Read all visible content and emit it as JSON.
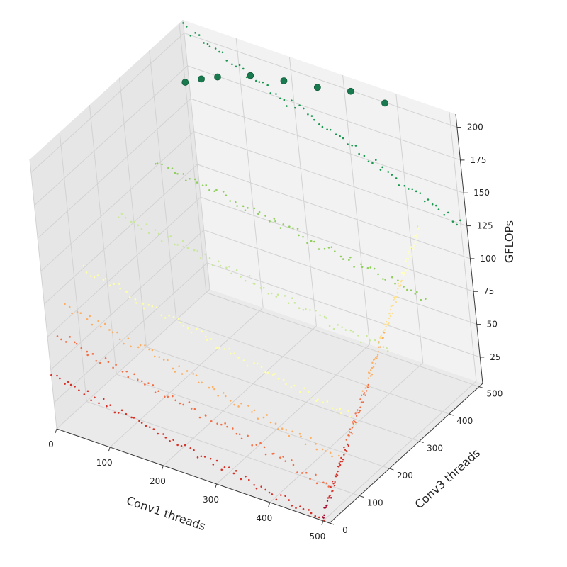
{
  "chart_data": {
    "type": "scatter",
    "projection": "3d",
    "title": "",
    "xlabel": "Conv1 threads",
    "ylabel": "Conv3 threads",
    "zlabel": "GFLOPs",
    "xlim": [
      0,
      512
    ],
    "ylim": [
      0,
      512
    ],
    "zlim": [
      5,
      210
    ],
    "x_ticks": [
      0,
      100,
      200,
      300,
      400,
      500
    ],
    "y_ticks": [
      0,
      100,
      200,
      300,
      400,
      500
    ],
    "z_ticks": [
      25,
      50,
      75,
      100,
      125,
      150,
      175,
      200
    ],
    "grid": true,
    "legend": "none",
    "colormap": "RdYlGn",
    "color_stops": [
      "#a50026",
      "#d73027",
      "#f46d43",
      "#fdae61",
      "#fee08b",
      "#ffffbf",
      "#d9ef8b",
      "#a6d96a",
      "#66bd63",
      "#1a9850",
      "#006837"
    ],
    "series": [
      {
        "name": "",
        "conv3_threads": 0,
        "gflops_range": [
          5,
          45
        ],
        "color": "#d73027"
      },
      {
        "name": "",
        "conv3_threads": 32,
        "gflops_range": [
          25,
          70
        ],
        "color": "#f46d43"
      },
      {
        "name": "",
        "conv3_threads": 64,
        "gflops_range": [
          40,
          85
        ],
        "color": "#fdae61"
      },
      {
        "name": "",
        "conv3_threads": 128,
        "gflops_range": [
          55,
          100
        ],
        "color": "#ffffa8"
      },
      {
        "name": "",
        "conv3_threads": 256,
        "gflops_range": [
          80,
          115
        ],
        "color": "#c9e89a"
      },
      {
        "name": "",
        "conv3_threads": 384,
        "gflops_range": [
          95,
          130
        ],
        "color": "#8fcf5a"
      },
      {
        "name": "",
        "conv3_threads": 512,
        "gflops_range": [
          125,
          205
        ],
        "color": "#1a9850"
      }
    ],
    "highlighted_points": [
      {
        "conv1_threads": 0,
        "gflops": 165
      },
      {
        "conv1_threads": 32,
        "gflops": 172
      },
      {
        "conv1_threads": 64,
        "gflops": 178
      },
      {
        "conv1_threads": 128,
        "gflops": 188
      },
      {
        "conv1_threads": 192,
        "gflops": 193
      },
      {
        "conv1_threads": 256,
        "gflops": 197
      },
      {
        "conv1_threads": 320,
        "gflops": 203
      },
      {
        "conv1_threads": 384,
        "gflops": 203
      }
    ]
  }
}
